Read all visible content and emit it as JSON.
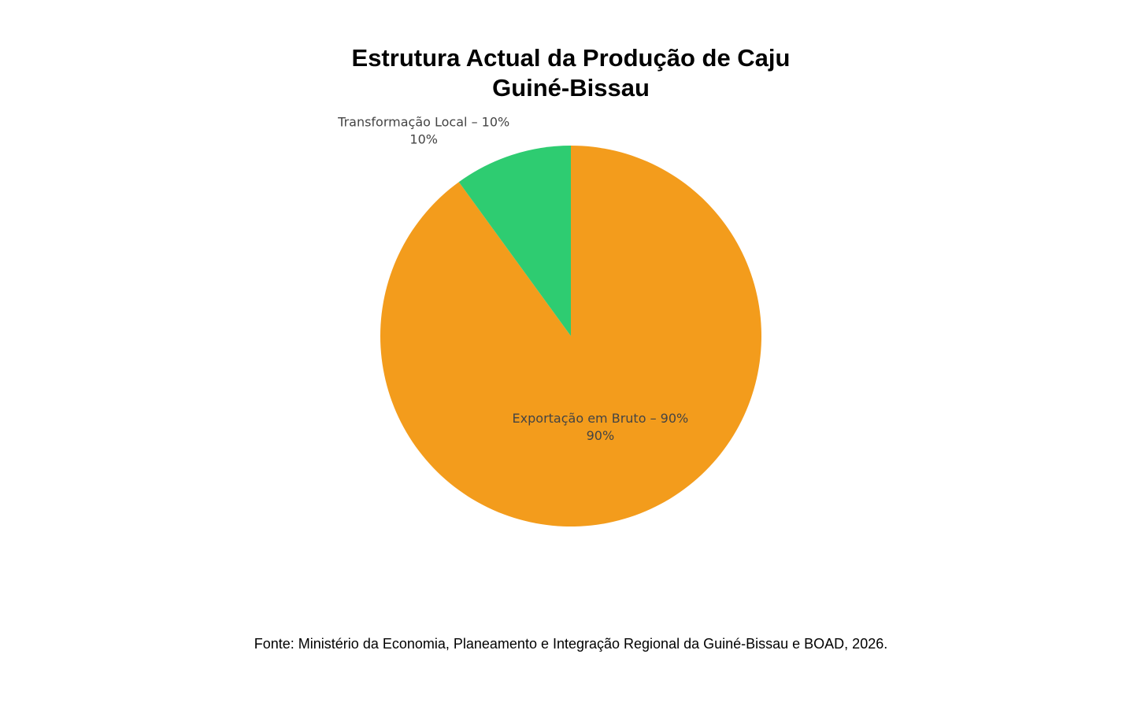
{
  "chart_data": {
    "type": "pie",
    "title": "Estrutura Actual da Produção de Caju",
    "subtitle": "Guiné-Bissau",
    "categories": [
      "Exportação em Bruto – 90%",
      "Transformação Local – 10%"
    ],
    "values": [
      90,
      10
    ],
    "value_labels": [
      "90%",
      "10%"
    ],
    "colors": [
      "#f39c1c",
      "#2ecc71"
    ],
    "source": "Fonte: Ministério da Economia, Planeamento e Integração Regional da Guiné-Bissau e BOAD, 2026."
  }
}
